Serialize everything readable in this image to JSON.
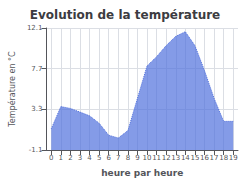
{
  "chart_data": {
    "type": "area",
    "title": "Evolution de la température",
    "xlabel": "heure par heure",
    "ylabel": "Température en °C",
    "x": [
      0,
      1,
      2,
      3,
      4,
      5,
      6,
      7,
      8,
      9,
      10,
      11,
      12,
      13,
      14,
      15,
      16,
      17,
      18,
      19
    ],
    "values": [
      1.2,
      3.6,
      3.4,
      3.0,
      2.6,
      1.8,
      0.5,
      0.2,
      1.0,
      4.5,
      8.0,
      9.0,
      10.2,
      11.2,
      11.7,
      10.2,
      7.5,
      4.5,
      2.0,
      2.0
    ],
    "xlim": [
      -0.5,
      19.5
    ],
    "xticks": [
      0,
      1,
      2,
      3,
      4,
      5,
      6,
      7,
      8,
      9,
      10,
      11,
      12,
      13,
      14,
      15,
      16,
      17,
      18,
      19
    ],
    "ylim": [
      -1.1,
      12.1
    ],
    "yticks": [
      -1.1,
      3.3,
      7.7,
      12.1
    ],
    "line_style": "dotted",
    "grid": true
  }
}
